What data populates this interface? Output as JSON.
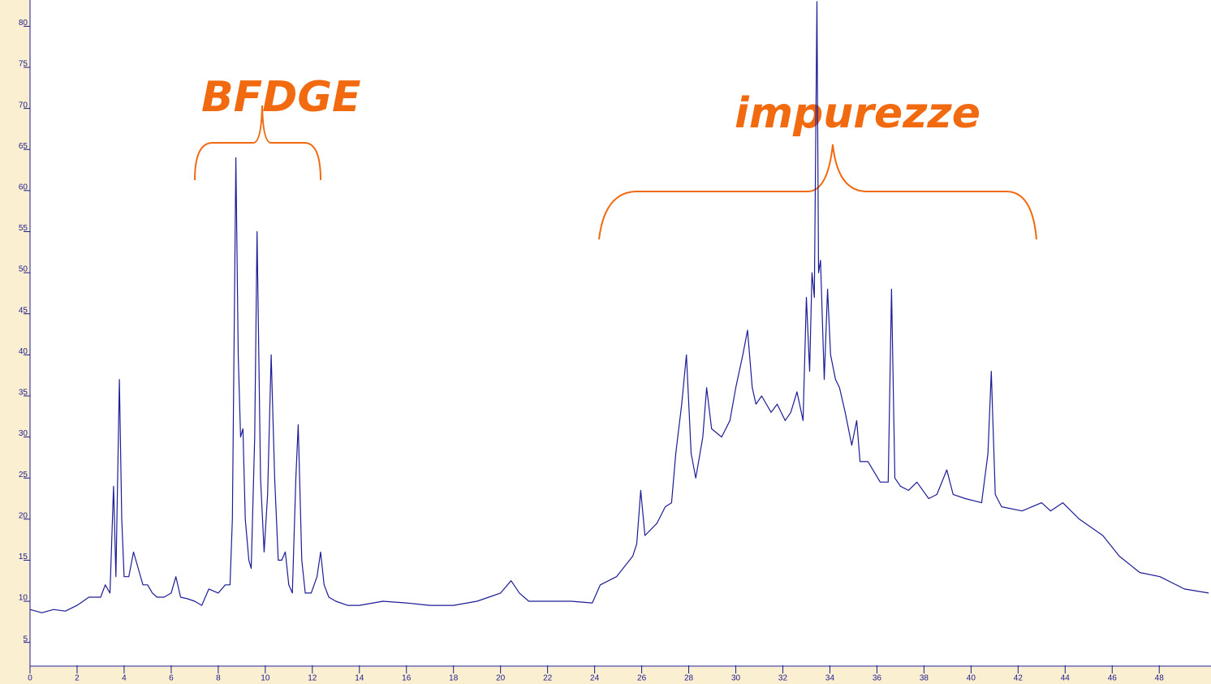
{
  "chart_data": {
    "type": "line",
    "annotations": [
      "BFDGE",
      "impurezze"
    ],
    "color": "#1c1c96",
    "xlim": [
      0,
      50.2
    ],
    "ylim": [
      2.2,
      83.2
    ],
    "xticks": [
      0,
      2,
      4,
      6,
      8,
      10,
      12,
      14,
      16,
      18,
      20,
      22,
      24,
      26,
      28,
      30,
      32,
      34,
      36,
      38,
      40,
      42,
      44,
      46,
      48
    ],
    "yticks": [
      5,
      10,
      15,
      20,
      25,
      30,
      35,
      40,
      45,
      50,
      55,
      60,
      65,
      70,
      75,
      80
    ],
    "x": [
      0,
      0.5,
      1,
      1.5,
      2,
      2.5,
      3,
      3.2,
      3.4,
      3.55,
      3.65,
      3.8,
      3.9,
      4.0,
      4.2,
      4.4,
      4.6,
      4.8,
      5.0,
      5.2,
      5.4,
      5.7,
      6.0,
      6.2,
      6.4,
      6.7,
      7,
      7.3,
      7.6,
      8,
      8.3,
      8.5,
      8.6,
      8.75,
      8.85,
      8.95,
      9.05,
      9.15,
      9.3,
      9.4,
      9.55,
      9.65,
      9.8,
      9.95,
      10.1,
      10.25,
      10.4,
      10.55,
      10.7,
      10.85,
      11,
      11.15,
      11.3,
      11.4,
      11.55,
      11.7,
      11.95,
      12.2,
      12.35,
      12.5,
      12.7,
      13,
      13.5,
      14,
      15,
      16,
      17,
      18,
      19,
      19.5,
      20,
      20.45,
      20.8,
      21.2,
      22,
      23,
      23.9,
      24.24,
      24.93,
      25.62,
      25.79,
      25.96,
      26.14,
      26.65,
      27,
      27.27,
      27.45,
      27.7,
      27.9,
      28.1,
      28.3,
      28.6,
      28.76,
      28.97,
      29.4,
      29.75,
      30,
      30.3,
      30.5,
      30.7,
      30.86,
      31.1,
      31.5,
      31.76,
      32.1,
      32.34,
      32.6,
      32.86,
      33,
      33.14,
      33.24,
      33.34,
      33.45,
      33.52,
      33.6,
      33.76,
      33.9,
      34.03,
      34.24,
      34.41,
      34.65,
      34.93,
      35.14,
      35.28,
      35.62,
      36.14,
      36.48,
      36.62,
      36.76,
      37,
      37.34,
      37.7,
      38.2,
      38.55,
      38.97,
      39.24,
      39.76,
      40.45,
      40.72,
      40.86,
      41.03,
      41.3,
      42.17,
      43,
      43.38,
      43.9,
      44.6,
      45.6,
      46.3,
      47.17,
      48.03,
      49.07,
      50.1
    ],
    "values": [
      9,
      8.6,
      9,
      8.8,
      9.5,
      10.5,
      10.5,
      12,
      11,
      24,
      13,
      37,
      20,
      13,
      13,
      16,
      14,
      12,
      12,
      11,
      10.5,
      10.5,
      11,
      13,
      10.5,
      10.3,
      10,
      9.5,
      11.5,
      11,
      12,
      12,
      20,
      64,
      40,
      30,
      31,
      20,
      15,
      14,
      30,
      55,
      25,
      16,
      23,
      40,
      25,
      15,
      15,
      16,
      12,
      11,
      25,
      31.5,
      15,
      11,
      11,
      13,
      16,
      12,
      10.5,
      10,
      9.5,
      9.5,
      10,
      9.8,
      9.5,
      9.5,
      10,
      10.5,
      11,
      12.5,
      11,
      10,
      10,
      10,
      9.8,
      12,
      13,
      15.5,
      17,
      23.5,
      18,
      19.5,
      21.5,
      22,
      28,
      34,
      40,
      28,
      25,
      30,
      36,
      31,
      30,
      32,
      36,
      40,
      43,
      36,
      34,
      35,
      33,
      34,
      32,
      33,
      35.5,
      32,
      47,
      38,
      50,
      47,
      83,
      50,
      51.5,
      37,
      48,
      40,
      37,
      36,
      33,
      29,
      32,
      27,
      27,
      24.5,
      24.5,
      48,
      25,
      24,
      23.5,
      24.5,
      22.5,
      23,
      26,
      23,
      22.5,
      22,
      28,
      38,
      23,
      21.5,
      21,
      22,
      21,
      22,
      20,
      18,
      15.5,
      13.5,
      13,
      11.5,
      11
    ]
  }
}
